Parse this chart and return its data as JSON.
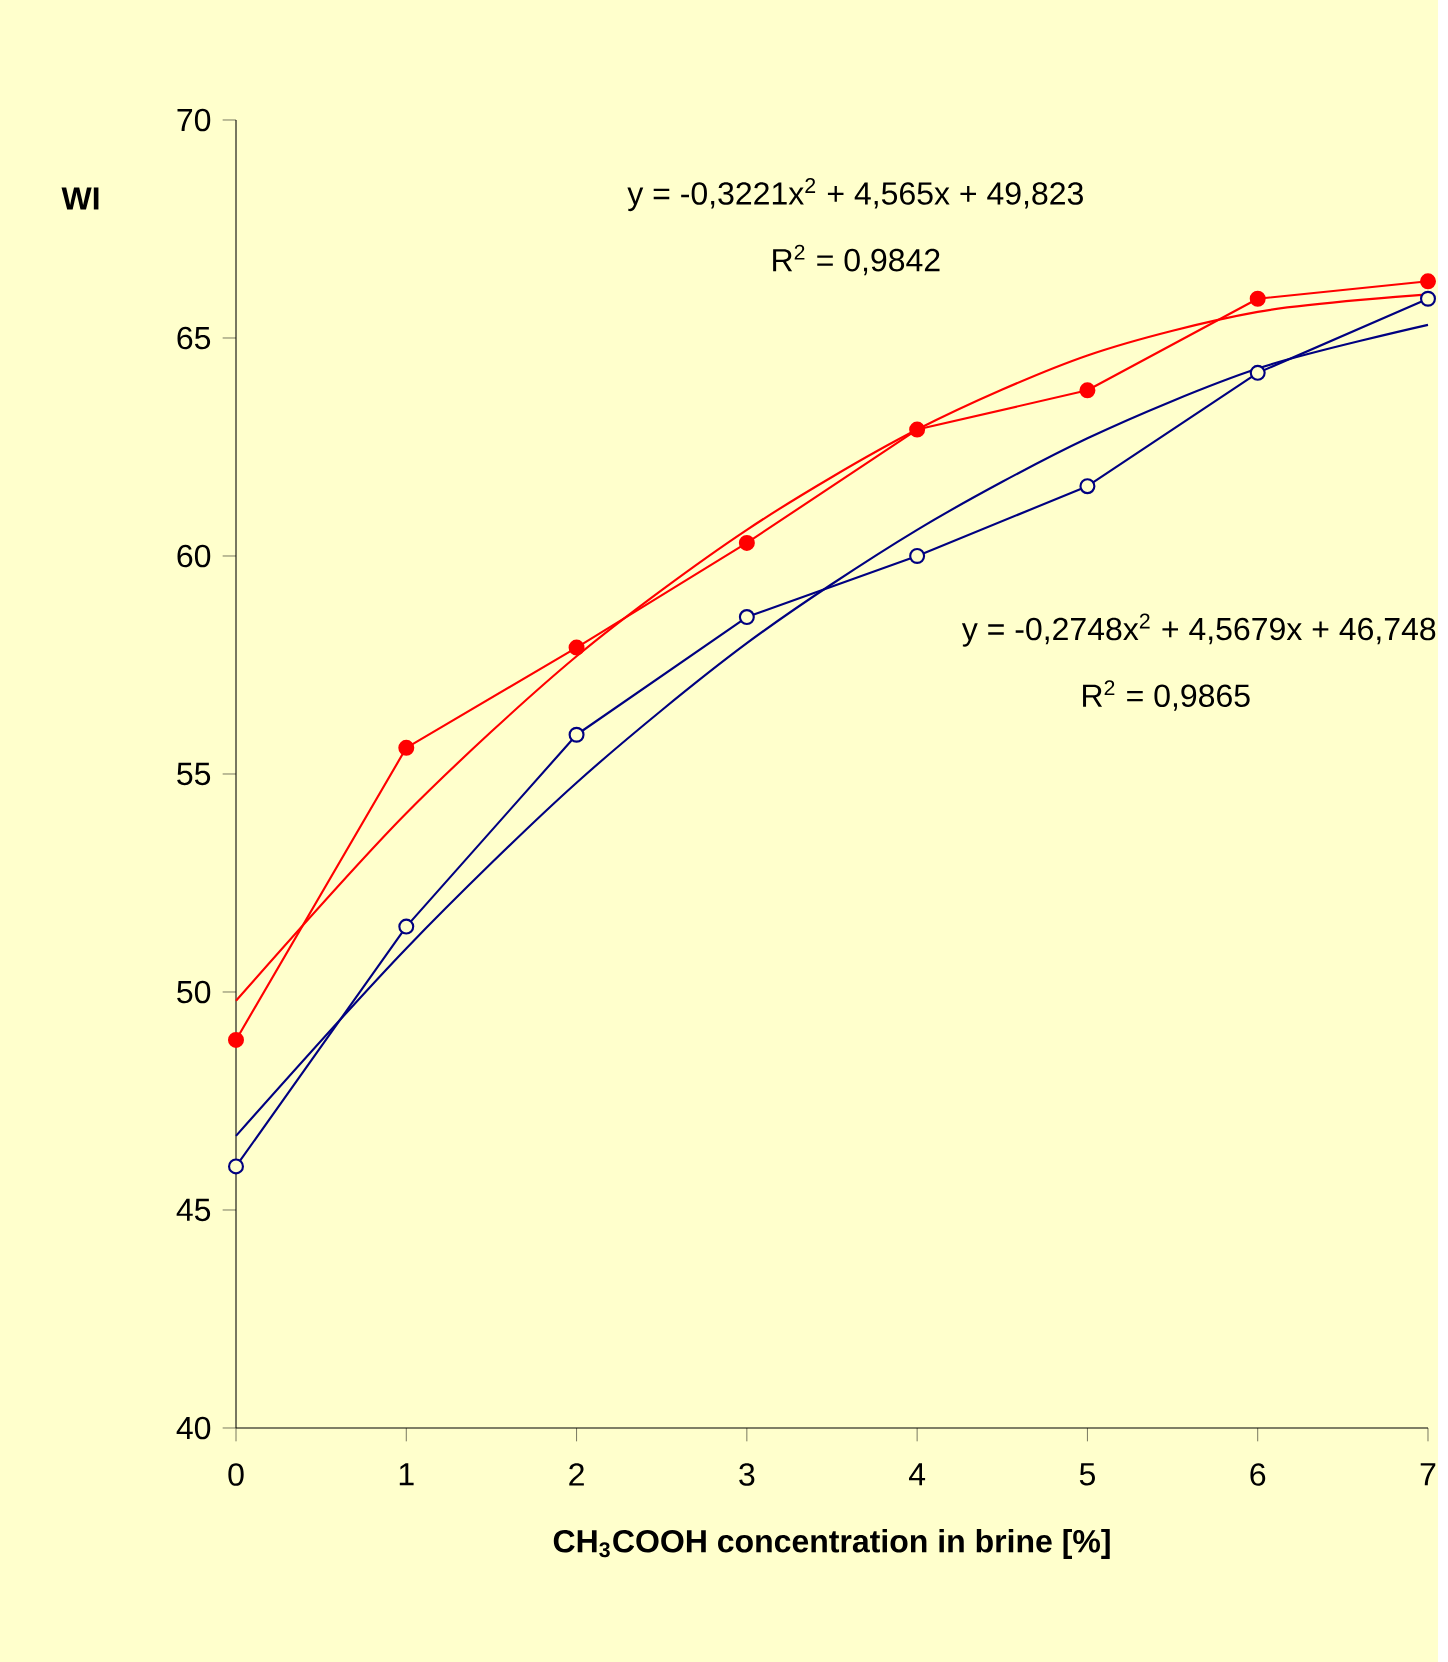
{
  "chart_data": {
    "type": "line",
    "xlabel": "CH$_{3}$COOH concentration in brine [%]",
    "ylabel": "WI",
    "x": [
      0,
      1,
      2,
      3,
      4,
      5,
      6,
      7
    ],
    "series": [
      {
        "color": "#ff0000",
        "marker": "circle",
        "values": [
          48.9,
          55.6,
          57.9,
          60.3,
          62.9,
          63.8,
          65.9,
          66.3
        ]
      },
      {
        "color": "#000080",
        "marker": "circle",
        "values": [
          46.0,
          51.5,
          55.9,
          58.6,
          60.0,
          61.6,
          64.2,
          65.9
        ]
      },
      {
        "type": "line",
        "color": "#ff0000",
        "marker": "none",
        "x": [
          0,
          1,
          2,
          3,
          4,
          5,
          6,
          7
        ],
        "values": [
          49.8,
          54.1,
          57.7,
          60.6,
          62.9,
          64.6,
          65.6,
          66.0
        ]
      },
      {
        "type": "line",
        "color": "#000080",
        "marker": "none",
        "x": [
          0,
          1,
          2,
          3,
          4,
          5,
          6,
          7
        ],
        "values": [
          46.7,
          51.0,
          54.8,
          58.0,
          60.6,
          62.7,
          64.3,
          65.3
        ]
      }
    ],
    "annotations": [
      "y = -0,3221x$^{2}$ + 4,565x + 49,823",
      "R$^{2}$ = 0,9842",
      "y = -0,2748x$^{2}$ + 4,5679x + 46,748",
      "R$^{2}$ = 0,9865"
    ],
    "xlim": [
      0,
      7
    ],
    "ylim": [
      40,
      70
    ],
    "xticks": [
      0,
      1,
      2,
      3,
      4,
      5,
      6,
      7
    ],
    "yticks": [
      40,
      45,
      50,
      55,
      60,
      65,
      70
    ],
    "grid": false,
    "line_style": "solid"
  }
}
